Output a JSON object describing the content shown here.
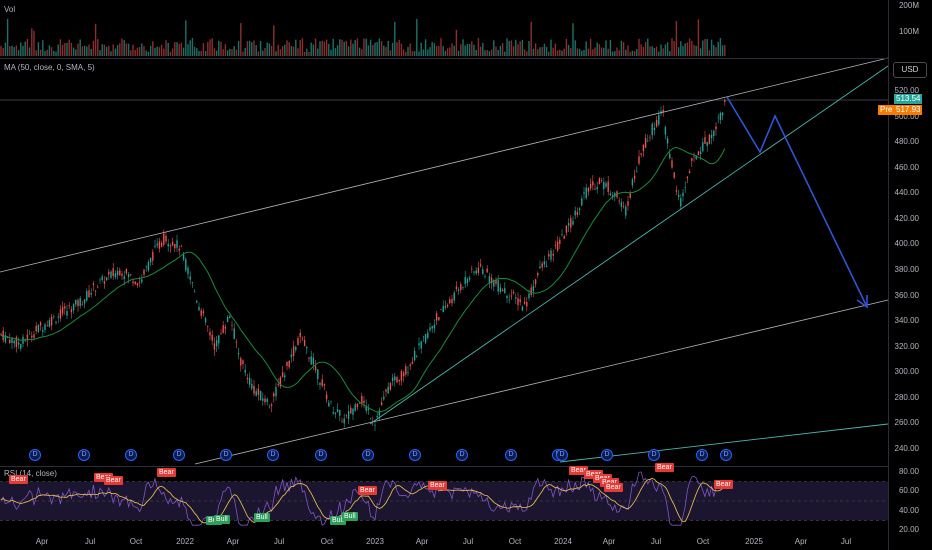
{
  "volume_pane": {
    "label": "Vol",
    "ticks": [
      "200M",
      "100M"
    ]
  },
  "price_pane": {
    "indicator_label": "MA (50, close, 0, SMA, 5)",
    "currency": "USD",
    "last_price": "513.54",
    "pre_label": "Pre",
    "pre_price": "517.93",
    "ticks": [
      "520.00",
      "500.00",
      "480.00",
      "460.00",
      "440.00",
      "420.00",
      "400.00",
      "380.00",
      "360.00",
      "340.00",
      "320.00",
      "300.00",
      "280.00",
      "260.00",
      "240.00"
    ],
    "earnings_marker": "D"
  },
  "rsi_pane": {
    "label": "RSI (14, close)",
    "ticks": [
      "80.00",
      "60.00",
      "40.00",
      "20.00"
    ],
    "bear_label": "Bear",
    "bull_label": "Bull"
  },
  "time_axis": [
    "Apr",
    "Jul",
    "Oct",
    "2022",
    "Apr",
    "Jul",
    "Oct",
    "2023",
    "Apr",
    "Jul",
    "Oct",
    "2024",
    "Apr",
    "Jul",
    "Oct",
    "2025",
    "Apr",
    "Jul"
  ],
  "colors": {
    "background": "#000000",
    "up": "#26a69a",
    "down": "#ef5350",
    "ma": "#1b8a3a",
    "trend_upper": "#b2b5be",
    "trend_lower": "#4db6ac",
    "projection": "#2f55d4",
    "rsi": "#7e57c2",
    "rsi_ma": "#f2c94c",
    "last_price": "#26a69a",
    "pre_price": "#f57c00"
  }
}
